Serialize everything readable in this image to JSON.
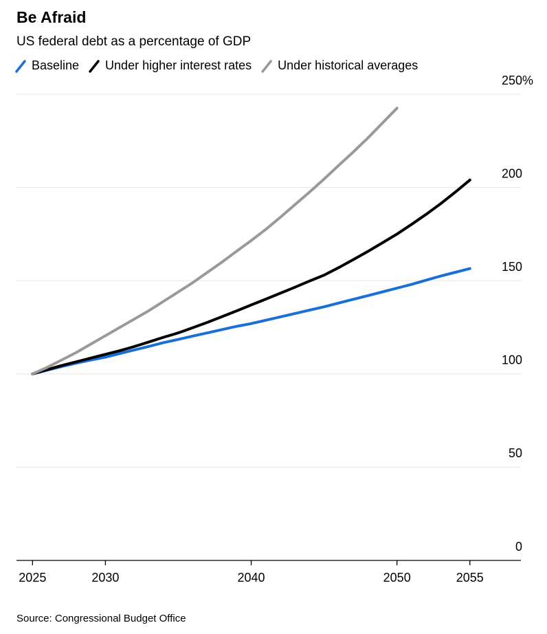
{
  "chart_data": {
    "type": "line",
    "title": "Be Afraid",
    "subtitle": "US federal debt as a percentage of GDP",
    "source": "Source: Congressional Budget Office",
    "x": [
      2025,
      2026,
      2027,
      2028,
      2029,
      2030,
      2031,
      2032,
      2033,
      2034,
      2035,
      2036,
      2037,
      2038,
      2039,
      2040,
      2041,
      2042,
      2043,
      2044,
      2045,
      2046,
      2047,
      2048,
      2049,
      2050,
      2051,
      2052,
      2053,
      2054,
      2055
    ],
    "series": [
      {
        "name": "Baseline",
        "color": "#1a6fd6",
        "values": [
          100,
          102,
          104,
          105.8,
          107.5,
          109,
          111,
          112.9,
          114.8,
          116.8,
          118.5,
          120.3,
          122,
          123.8,
          125.5,
          127,
          128.8,
          130.6,
          132.4,
          134.2,
          136,
          138,
          140,
          142,
          144,
          146,
          148,
          150.3,
          152.5,
          154.5,
          156.5
        ]
      },
      {
        "name": "Under higher interest rates",
        "color": "#000000",
        "values": [
          100,
          102.3,
          104.5,
          106.5,
          108.5,
          110.5,
          112.5,
          114.7,
          117.2,
          119.7,
          122,
          124.8,
          127.7,
          130.7,
          133.8,
          137,
          140.1,
          143.3,
          146.5,
          149.8,
          153,
          157,
          161.3,
          165.7,
          170.3,
          175,
          180.2,
          185.6,
          191.3,
          197.5,
          204
        ]
      },
      {
        "name": "Under historical averages",
        "color": "#999999",
        "values": [
          100,
          103.5,
          107.5,
          111.5,
          116,
          120.5,
          125,
          129.5,
          134,
          139,
          144,
          149,
          154.5,
          160,
          165.8,
          171.5,
          177.5,
          184,
          190.8,
          197.5,
          204.5,
          211.8,
          219,
          226.5,
          234.5,
          242.5,
          null,
          null,
          null,
          null,
          null
        ]
      }
    ],
    "xlim": [
      2023.9,
      2058.5
    ],
    "xticks": [
      2025,
      2030,
      2040,
      2050,
      2055
    ],
    "ylim": [
      0,
      250
    ],
    "yticks": [
      0,
      50,
      100,
      150,
      {
        "value": 250,
        "label": "250%"
      },
      200
    ],
    "grid": true
  }
}
